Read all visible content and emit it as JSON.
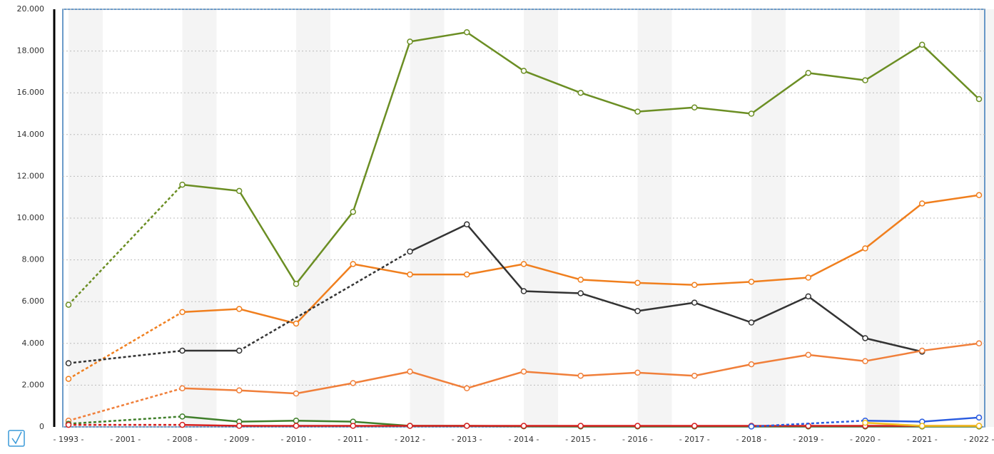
{
  "chart_data": {
    "type": "line",
    "categories": [
      "1993",
      "2001",
      "2008",
      "2009",
      "2010",
      "2011",
      "2012",
      "2013",
      "2014",
      "2015",
      "2016",
      "2017",
      "2018",
      "2019",
      "2020",
      "2021",
      "2022"
    ],
    "ylim": [
      0,
      20000
    ],
    "yticks": [
      {
        "value": 0,
        "label": "0"
      },
      {
        "value": 2000,
        "label": "2.000"
      },
      {
        "value": 4000,
        "label": "4.000"
      },
      {
        "value": 6000,
        "label": "6.000"
      },
      {
        "value": 8000,
        "label": "8.000"
      },
      {
        "value": 10000,
        "label": "10.000"
      },
      {
        "value": 12000,
        "label": "12.000"
      },
      {
        "value": 14000,
        "label": "14.000"
      },
      {
        "value": 16000,
        "label": "16.000"
      },
      {
        "value": 18000,
        "label": "18.000"
      },
      {
        "value": 20000,
        "label": "20.000"
      }
    ],
    "grid": true,
    "series": [
      {
        "color": "#6b8e23",
        "values": [
          5850,
          null,
          11600,
          11300,
          6850,
          10300,
          18450,
          18900,
          17050,
          16000,
          15100,
          15300,
          15000,
          16950,
          16600,
          18300,
          15700
        ]
      },
      {
        "color": "#f07f1e",
        "values": [
          2300,
          null,
          5500,
          5650,
          4950,
          7800,
          7300,
          7300,
          7800,
          7050,
          6900,
          6800,
          6950,
          7150,
          8550,
          10700,
          11100
        ]
      },
      {
        "color": "#333333",
        "values": [
          3050,
          null,
          3650,
          3650,
          null,
          null,
          8400,
          9700,
          6500,
          6400,
          5550,
          5950,
          5000,
          6250,
          4250,
          3600,
          null
        ]
      },
      {
        "color": "#f07f3a",
        "values": [
          300,
          null,
          1850,
          1750,
          1600,
          2100,
          2650,
          1850,
          2650,
          2450,
          2600,
          2450,
          3000,
          3450,
          3150,
          3650,
          4000
        ]
      },
      {
        "color": "#3f7f2a",
        "values": [
          150,
          null,
          500,
          250,
          300,
          250,
          50,
          50,
          30,
          20,
          20,
          20,
          20,
          20,
          20,
          20,
          20
        ]
      },
      {
        "color": "#d62020",
        "values": [
          100,
          null,
          100,
          50,
          50,
          50,
          50,
          50,
          50,
          50,
          50,
          50,
          50,
          50,
          50,
          50,
          50
        ]
      },
      {
        "color": "#2a5ce0",
        "values": [
          null,
          null,
          null,
          null,
          null,
          null,
          null,
          null,
          null,
          null,
          null,
          null,
          20,
          null,
          300,
          250,
          450
        ]
      },
      {
        "color": "#f0c020",
        "values": [
          null,
          null,
          null,
          null,
          null,
          null,
          null,
          null,
          null,
          null,
          null,
          null,
          null,
          null,
          200,
          50,
          50
        ]
      }
    ]
  }
}
